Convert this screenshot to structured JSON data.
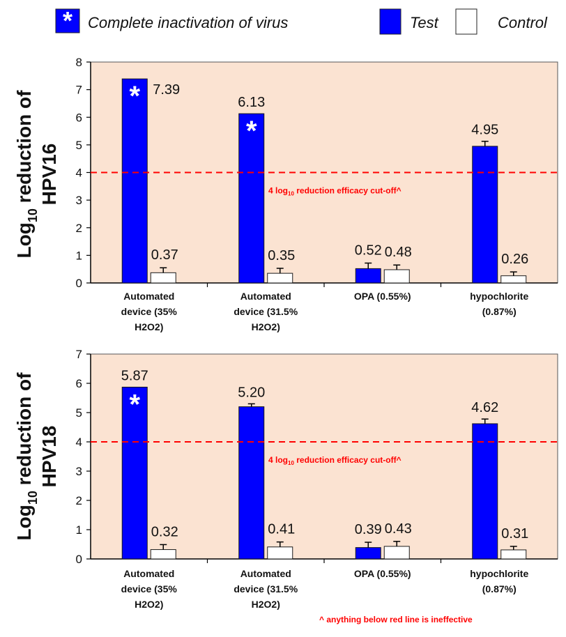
{
  "legend": {
    "items": [
      {
        "label": "Complete inactivation of virus",
        "kind": "asterisk",
        "color": "#0000FF"
      },
      {
        "label": "Test",
        "kind": "fill",
        "color": "#0000FF"
      },
      {
        "label": "Control",
        "kind": "fill",
        "color": "#FFFFFF"
      }
    ]
  },
  "colors": {
    "test": "#0000FF",
    "control": "#FFFFFF",
    "plot_bg": "#FBE3D2",
    "cutoff": "#FF0000",
    "asterisk": "#FFFFFF"
  },
  "footnote": "^ anything below red line is ineffective",
  "chart_data": [
    {
      "type": "bar",
      "ylabel_line1": "Log10 reduction of",
      "ylabel_line2": "HPV16",
      "ylim": [
        0,
        8
      ],
      "yticks": [
        0,
        1,
        2,
        3,
        4,
        5,
        6,
        7,
        8
      ],
      "categories": [
        [
          "Automated",
          "device (35%",
          "H2O2)"
        ],
        [
          "Automated",
          "device (31.5%",
          "H2O2)"
        ],
        [
          "OPA (0.55%)"
        ],
        [
          "hypochlorite",
          "(0.87%)"
        ]
      ],
      "series": [
        {
          "name": "Test",
          "values": [
            7.39,
            6.13,
            0.52,
            4.95
          ],
          "labels": [
            "7.39",
            "6.13",
            "0.52",
            "4.95"
          ],
          "errors": [
            0,
            0,
            0.2,
            0.18
          ],
          "complete_inactivation": [
            true,
            true,
            false,
            false
          ]
        },
        {
          "name": "Control",
          "values": [
            0.37,
            0.35,
            0.48,
            0.26
          ],
          "labels": [
            "0.37",
            "0.35",
            "0.48",
            "0.26"
          ],
          "errors": [
            0.18,
            0.18,
            0.17,
            0.14
          ]
        }
      ],
      "cutoff": {
        "value": 4,
        "label_pre": "4 log",
        "label_sub": "10",
        "label_post": " reduction efficacy cut-off^"
      }
    },
    {
      "type": "bar",
      "ylabel_line1": "Log10 reduction of",
      "ylabel_line2": "HPV18",
      "ylim": [
        0,
        7
      ],
      "yticks": [
        0,
        1,
        2,
        3,
        4,
        5,
        6,
        7
      ],
      "categories": [
        [
          "Automated",
          "device (35%",
          "H2O2)"
        ],
        [
          "Automated",
          "device (31.5%",
          "H2O2)"
        ],
        [
          "OPA (0.55%)"
        ],
        [
          "hypochlorite",
          "(0.87%)"
        ]
      ],
      "series": [
        {
          "name": "Test",
          "values": [
            5.87,
            5.2,
            0.39,
            4.62
          ],
          "labels": [
            "5.87",
            "5.20",
            "0.39",
            "4.62"
          ],
          "errors": [
            0,
            0.1,
            0.18,
            0.16
          ],
          "complete_inactivation": [
            true,
            false,
            false,
            false
          ]
        },
        {
          "name": "Control",
          "values": [
            0.32,
            0.41,
            0.43,
            0.31
          ],
          "labels": [
            "0.32",
            "0.41",
            "0.43",
            "0.31"
          ],
          "errors": [
            0.17,
            0.17,
            0.17,
            0.12
          ]
        }
      ],
      "cutoff": {
        "value": 4,
        "label_pre": "4 log",
        "label_sub": "10",
        "label_post": " reduction efficacy cut-off^"
      }
    }
  ]
}
